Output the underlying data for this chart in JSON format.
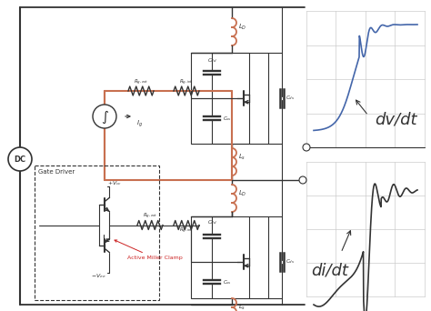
{
  "bg_color": "#ffffff",
  "dv_dt_label": "dv/dt",
  "di_dt_label": "di/dt",
  "dc_label": "DC",
  "gate_driver_label": "Gate Driver",
  "active_miller_label": "Active Miller Clamp",
  "vcc_label": "+V_cc",
  "vee_label": "-V_ee",
  "line_color": "#333333",
  "copper_color": "#c87050",
  "blue_color": "#4466aa",
  "grid_color": "#cccccc",
  "red_color": "#cc2222",
  "figw": 4.74,
  "figh": 3.42,
  "dpi": 100
}
